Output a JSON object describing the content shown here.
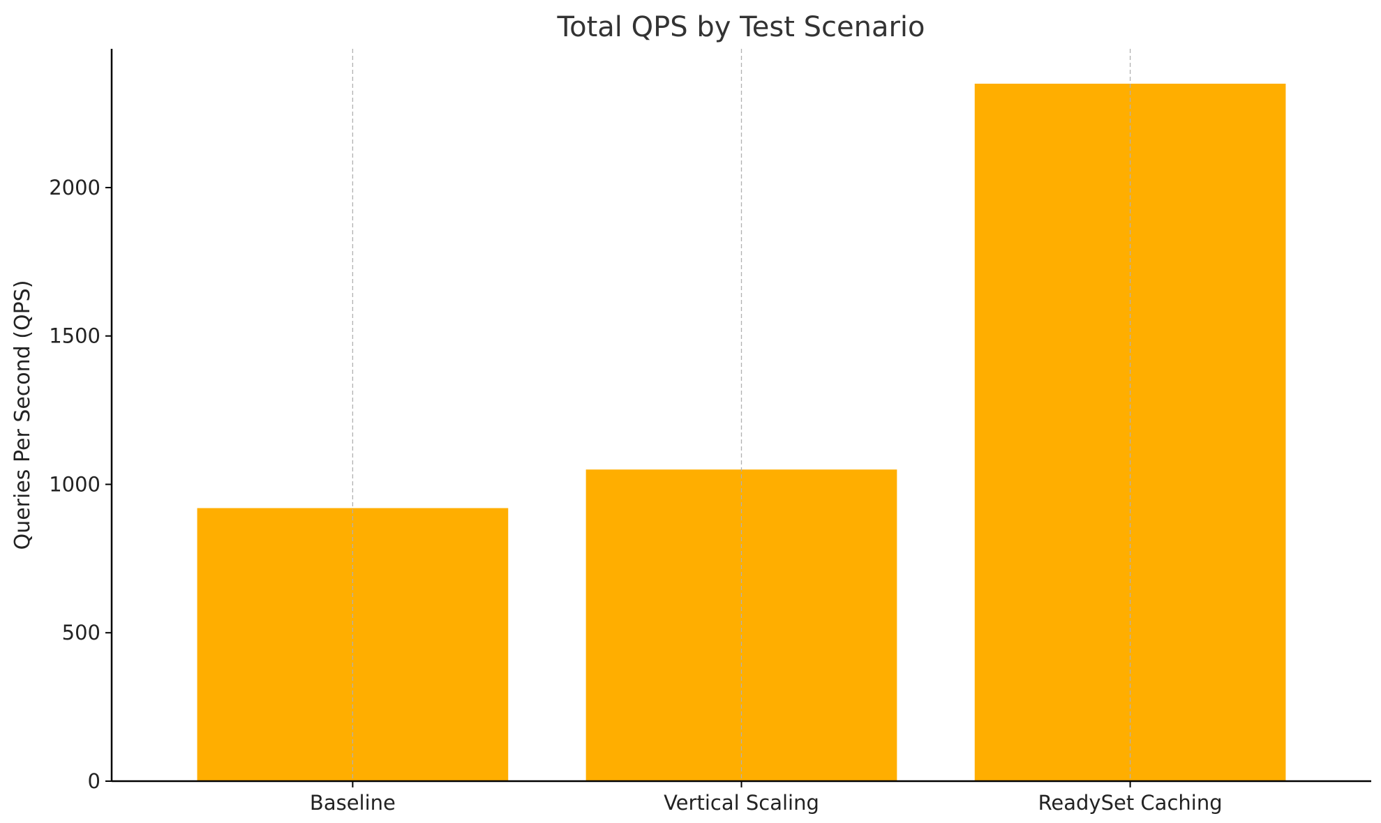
{
  "chart_data": {
    "type": "bar",
    "title": "Total QPS by Test Scenario",
    "xlabel": "",
    "ylabel": "Queries Per Second (QPS)",
    "categories": [
      "Baseline",
      "Vertical Scaling",
      "ReadySet Caching"
    ],
    "values": [
      920,
      1050,
      2350
    ],
    "ylim": [
      0,
      2467.5
    ],
    "yticks": [
      0,
      500,
      1000,
      1500,
      2000
    ],
    "grid": "x-axis only, dashed",
    "legend": "none",
    "bar_color": "#FFAE00"
  }
}
